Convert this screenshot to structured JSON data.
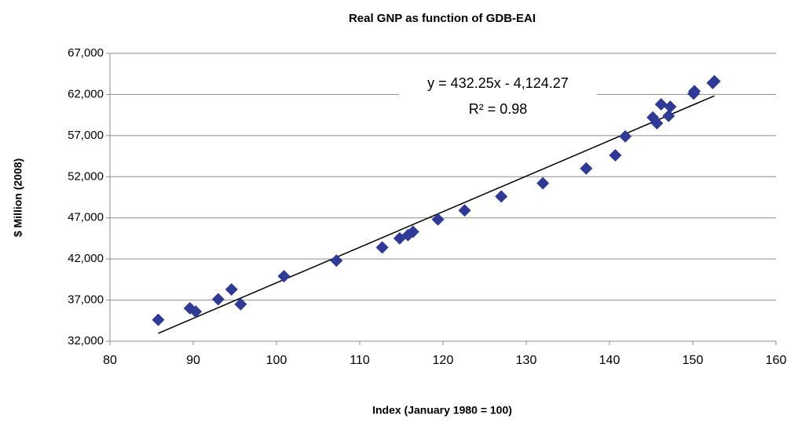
{
  "chart_data": {
    "type": "scatter",
    "title": "Real GNP as function of GDB-EAI",
    "x_label": "Index (January 1980 = 100)",
    "y_label": "$ Million (2008)",
    "series": [
      {
        "color": "#2e3a96",
        "x": [
          85.8,
          89.6,
          90.3,
          93.0,
          94.6,
          95.7,
          100.9,
          107.2,
          112.7,
          114.8,
          115.8,
          116.4,
          119.4,
          122.6,
          127.0,
          132.0,
          137.2,
          140.7,
          141.9,
          145.2,
          145.7,
          146.2,
          147.1,
          147.3,
          150.1,
          150.2,
          152.4,
          152.6
        ],
        "values": [
          34600,
          36000,
          35600,
          37100,
          38300,
          36500,
          39900,
          41800,
          43400,
          44500,
          44900,
          45300,
          46800,
          47900,
          49600,
          51200,
          53000,
          54600,
          56900,
          59200,
          58500,
          60800,
          59400,
          60500,
          62100,
          62400,
          63400,
          63600
        ]
      }
    ],
    "trendline": {
      "slope": 432.25,
      "intercept": -4124.27,
      "r2": 0.98,
      "equation": "y = 432.25x - 4,124.27",
      "r2_label": "R² = 0.98",
      "color": "#000000"
    },
    "xlim": [
      80,
      160
    ],
    "xticks": [
      80,
      90,
      100,
      110,
      120,
      130,
      140,
      150,
      160
    ],
    "ylim": [
      32000,
      67000
    ],
    "yticks": [
      {
        "value": 32000,
        "label": "32,000"
      },
      {
        "value": 37000,
        "label": "37,000"
      },
      {
        "value": 42000,
        "label": "42,000"
      },
      {
        "value": 47000,
        "label": "47,000"
      },
      {
        "value": 52000,
        "label": "52,000"
      },
      {
        "value": 57000,
        "label": "57,000"
      },
      {
        "value": 62000,
        "label": "62,000"
      },
      {
        "value": 67000,
        "label": "67,000"
      }
    ],
    "grid": true
  }
}
